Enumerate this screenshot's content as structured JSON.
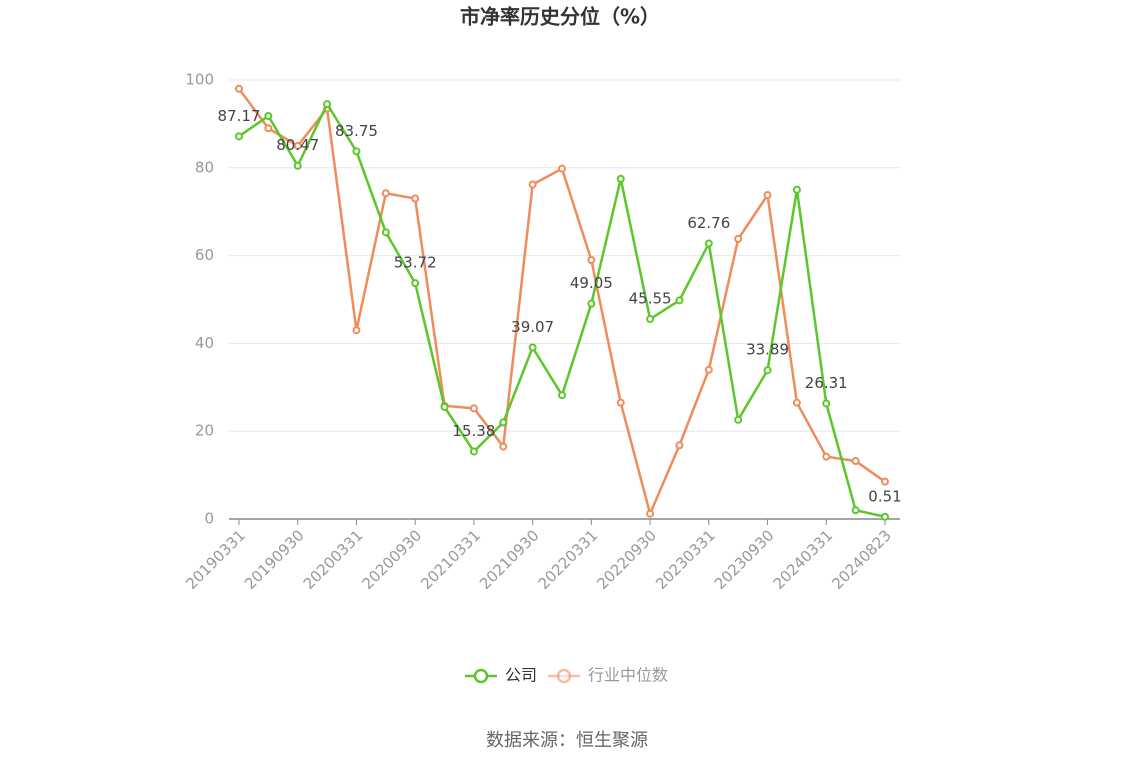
{
  "chart_data": {
    "type": "line",
    "title": "市净率历史分位（%）",
    "categories": [
      "20190331",
      null,
      "20190930",
      null,
      "20200331",
      null,
      "20200930",
      null,
      "20210331",
      null,
      "20210930",
      null,
      "20220331",
      null,
      "20220930",
      null,
      "20230331",
      null,
      "20230930",
      null,
      "20240331",
      null,
      "20240823"
    ],
    "series": [
      {
        "name": "公司",
        "color": "#5ac72a",
        "values": [
          87.17,
          91.8,
          80.47,
          94.5,
          83.75,
          65.3,
          53.72,
          25.5,
          15.38,
          22,
          39.07,
          28.2,
          49.05,
          77.5,
          45.55,
          49.8,
          62.76,
          22.6,
          33.89,
          75,
          26.31,
          2,
          0.51
        ]
      },
      {
        "name": "行业中位数",
        "color": "#f08c5a",
        "values": [
          98,
          89,
          85,
          93.5,
          43,
          74.2,
          73,
          25.8,
          25.2,
          16.5,
          76.2,
          79.8,
          59,
          26.5,
          1.2,
          16.8,
          34,
          63.8,
          73.8,
          26.5,
          14.2,
          13.2,
          8.5
        ]
      }
    ],
    "ylim": [
      0,
      100
    ],
    "yticks": [
      0,
      20,
      40,
      60,
      80,
      100
    ],
    "grid": true,
    "legend": "bottom",
    "source": "数据来源：恒生聚源"
  }
}
